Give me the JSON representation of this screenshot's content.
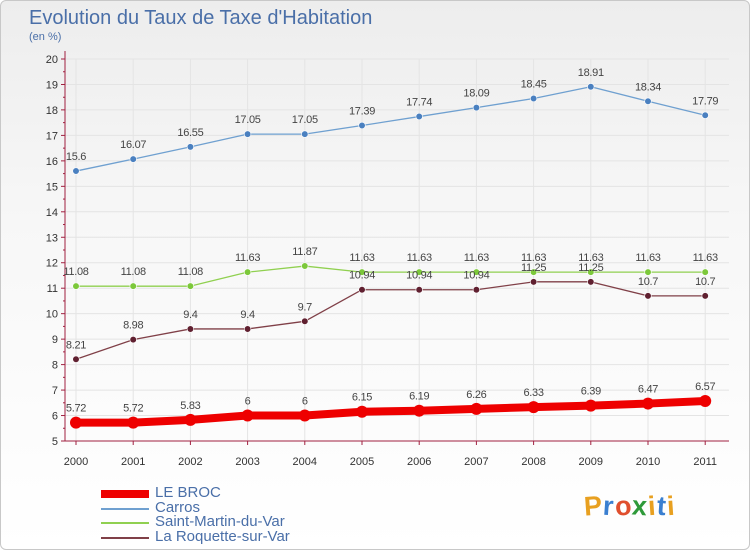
{
  "title": "Evolution du Taux de Taxe d'Habitation",
  "unit_label": "(en %)",
  "logo": {
    "text": "Proxiti",
    "letters": [
      "P",
      "r",
      "o",
      "x",
      "i",
      "t",
      "i"
    ],
    "colors": [
      "#e8a020",
      "#3a7fd0",
      "#e04f2e",
      "#2f9a3a",
      "#e8a020",
      "#3a7fd0",
      "#e8a020"
    ]
  },
  "colors": {
    "title": "#4a6fa8",
    "axis": "#a02040",
    "grid": "#ffffff",
    "tick_text": "#333333",
    "value_text": "#444444"
  },
  "chart_data": {
    "type": "line",
    "title": "Evolution du Taux de Taxe d'Habitation",
    "ylabel": "(en %)",
    "xlabel": "",
    "x": [
      "2000",
      "2001",
      "2002",
      "2003",
      "2004",
      "2005",
      "2006",
      "2007",
      "2008",
      "2009",
      "2010",
      "2011"
    ],
    "ylim": [
      5,
      20
    ],
    "yticks": [
      5,
      6,
      7,
      8,
      9,
      10,
      11,
      12,
      13,
      14,
      15,
      16,
      17,
      18,
      19,
      20
    ],
    "grid": true,
    "legend_position": "bottom-left",
    "series": [
      {
        "name": "LE BROC",
        "color": "#ee0000",
        "style": "thick",
        "values": [
          5.72,
          5.72,
          5.83,
          6,
          6,
          6.15,
          6.19,
          6.26,
          6.33,
          6.39,
          6.47,
          6.57
        ],
        "labels": [
          "5.72",
          "5.72",
          "5.83",
          "6",
          "6",
          "6.15",
          "6.19",
          "6.26",
          "6.33",
          "6.39",
          "6.47",
          "6.57"
        ]
      },
      {
        "name": "Carros",
        "color": "#6fa0d0",
        "marker": "#4a80c0",
        "style": "thin",
        "values": [
          15.6,
          16.07,
          16.55,
          17.05,
          17.05,
          17.39,
          17.74,
          18.09,
          18.45,
          18.91,
          18.34,
          17.79
        ],
        "labels": [
          "15.6",
          "16.07",
          "16.55",
          "17.05",
          "17.05",
          "17.39",
          "17.74",
          "18.09",
          "18.45",
          "18.91",
          "18.34",
          "17.79"
        ]
      },
      {
        "name": "Saint-Martin-du-Var",
        "color": "#90d050",
        "marker": "#7cc83a",
        "style": "thin",
        "values": [
          11.08,
          11.08,
          11.08,
          11.63,
          11.87,
          11.63,
          11.63,
          11.63,
          11.63,
          11.63,
          11.63,
          11.63
        ],
        "labels": [
          "11.08",
          "11.08",
          "11.08",
          "11.63",
          "11.87",
          "11.63",
          "11.63",
          "11.63",
          "11.63",
          "11.63",
          "11.63",
          "11.63"
        ]
      },
      {
        "name": "La Roquette-sur-Var",
        "color": "#804048",
        "marker": "#602030",
        "style": "thin",
        "values": [
          8.21,
          8.98,
          9.4,
          9.4,
          9.7,
          10.94,
          10.94,
          10.94,
          11.25,
          11.25,
          10.7,
          10.7
        ],
        "labels": [
          "8.21",
          "8.98",
          "9.4",
          "9.4",
          "9.7",
          "10.94",
          "10.94",
          "10.94",
          "11.25",
          "11.25",
          "10.7",
          "10.7"
        ]
      }
    ]
  }
}
